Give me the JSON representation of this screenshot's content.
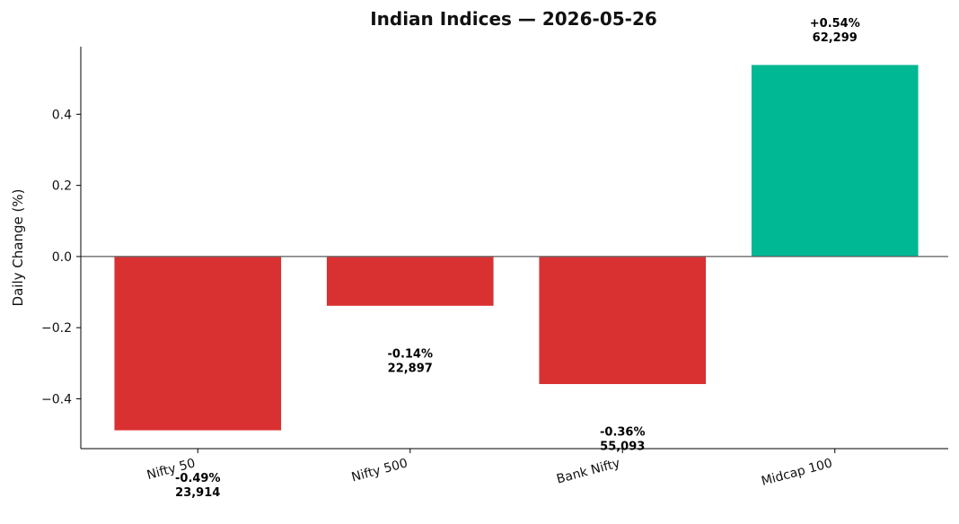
{
  "chart_data": {
    "type": "bar",
    "title": "Indian Indices — 2026-05-26",
    "xlabel": "",
    "ylabel": "Daily Change (%)",
    "ylim": [
      -0.54,
      0.59
    ],
    "yticks": [
      -0.4,
      -0.2,
      0.0,
      0.2,
      0.4
    ],
    "ytick_labels": [
      "−0.4",
      "−0.2",
      "0.0",
      "0.2",
      "0.4"
    ],
    "categories": [
      "Nifty 50",
      "Nifty 500",
      "Bank Nifty",
      "Midcap 100"
    ],
    "values": [
      -0.49,
      -0.14,
      -0.36,
      0.54
    ],
    "value_labels": [
      "-0.49%",
      "-0.14%",
      "-0.36%",
      "+0.54%"
    ],
    "level_labels": [
      "23,914",
      "22,897",
      "55,093",
      "62,299"
    ],
    "colors": {
      "negative": "#d93131",
      "positive": "#00b894"
    },
    "grid": false,
    "legend": "none"
  }
}
